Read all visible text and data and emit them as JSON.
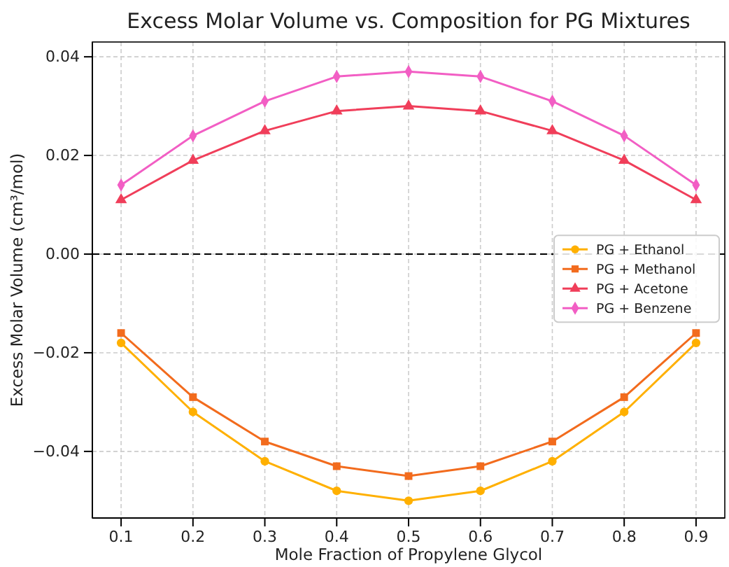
{
  "chart_data": {
    "type": "line",
    "title": "Excess Molar Volume vs. Composition for PG Mixtures",
    "xlabel": "Mole Fraction of Propylene Glycol",
    "ylabel": "Excess Molar Volume (cm³/mol)",
    "x": [
      0.1,
      0.2,
      0.3,
      0.4,
      0.5,
      0.6,
      0.7,
      0.8,
      0.9
    ],
    "series": [
      {
        "name": "PG + Ethanol",
        "color": "#ffb000",
        "marker": "circle",
        "values": [
          -0.018,
          -0.032,
          -0.042,
          -0.048,
          -0.05,
          -0.048,
          -0.042,
          -0.032,
          -0.018
        ]
      },
      {
        "name": "PG + Methanol",
        "color": "#f26b1d",
        "marker": "square",
        "values": [
          -0.016,
          -0.029,
          -0.038,
          -0.043,
          -0.045,
          -0.043,
          -0.038,
          -0.029,
          -0.016
        ]
      },
      {
        "name": "PG + Acetone",
        "color": "#f03e5a",
        "marker": "triangle",
        "values": [
          0.011,
          0.019,
          0.025,
          0.029,
          0.03,
          0.029,
          0.025,
          0.019,
          0.011
        ]
      },
      {
        "name": "PG + Benzene",
        "color": "#f25ec4",
        "marker": "diamond",
        "values": [
          0.014,
          0.024,
          0.031,
          0.036,
          0.037,
          0.036,
          0.031,
          0.024,
          0.014
        ]
      }
    ],
    "xlim": [
      0.06,
      0.94
    ],
    "xticks": [
      0.1,
      0.2,
      0.3,
      0.4,
      0.5,
      0.6,
      0.7,
      0.8,
      0.9
    ],
    "ylim": [
      -0.0535,
      0.043
    ],
    "yticks": [
      {
        "value": -0.04,
        "label": "−0.04"
      },
      {
        "value": -0.02,
        "label": "−0.02"
      },
      {
        "value": 0,
        "label": "0.00"
      },
      {
        "value": 0.02,
        "label": "0.02"
      },
      {
        "value": 0.04,
        "label": "0.04"
      }
    ],
    "ref_lines": [
      {
        "axis": "y",
        "value": 0,
        "label": null,
        "color": "#000000",
        "line_style": "dashed"
      }
    ],
    "grid": true,
    "legend": "right",
    "line_style": "solid"
  }
}
